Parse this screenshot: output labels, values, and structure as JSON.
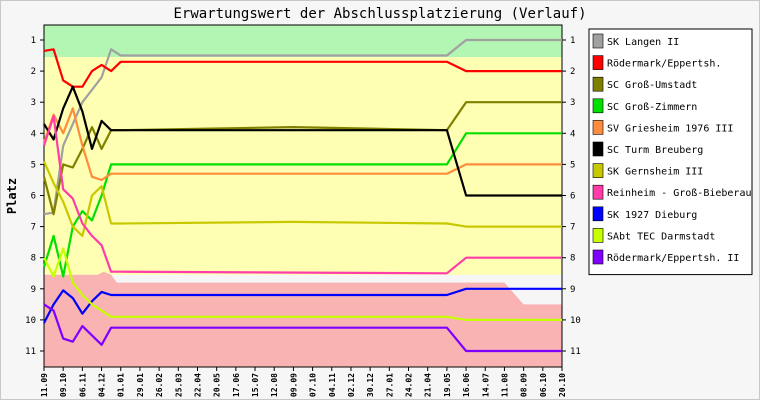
{
  "chart_data": {
    "type": "line",
    "title": "Erwartungswert der Abschlussplatzierung (Verlauf)",
    "ylabel": "Platz",
    "xlabel": "",
    "ylim": [
      1,
      11
    ],
    "y_inverted": true,
    "yticks": [
      "1",
      "2",
      "3",
      "4",
      "5",
      "6",
      "7",
      "8",
      "9",
      "10",
      "11"
    ],
    "x": [
      "11.09",
      "09.10",
      "06.11",
      "04.12",
      "01.01",
      "29.01",
      "26.02",
      "25.03",
      "22.04",
      "20.05",
      "17.06",
      "15.07",
      "12.08",
      "09.09",
      "07.10",
      "04.11",
      "02.12",
      "30.12",
      "27.01",
      "24.02",
      "21.04",
      "19.05",
      "16.06",
      "14.07",
      "11.08",
      "08.09",
      "06.10",
      "20.10"
    ],
    "zones": [
      {
        "name": "promotion",
        "color": "#b3f5b3"
      },
      {
        "name": "middle",
        "color": "#ffffb3"
      },
      {
        "name": "relegation",
        "color": "#f9b3b3"
      }
    ],
    "legend_position": "right",
    "series": [
      {
        "name": "SK Langen II",
        "color": "#a0a0a0",
        "values": [
          [
            0,
            6.6
          ],
          [
            0.5,
            6.55
          ],
          [
            1,
            4.4
          ],
          [
            1.5,
            3.7
          ],
          [
            2,
            3.0
          ],
          [
            2.5,
            2.6
          ],
          [
            3,
            2.2
          ],
          [
            3.5,
            1.3
          ],
          [
            4,
            1.5
          ],
          [
            4.5,
            1.5
          ],
          [
            21,
            1.5
          ],
          [
            22,
            1.0
          ],
          [
            27,
            1.0
          ]
        ]
      },
      {
        "name": "Rödermark/Eppertsh.",
        "color": "#ff0000",
        "values": [
          [
            0,
            1.35
          ],
          [
            0.5,
            1.3
          ],
          [
            1,
            2.3
          ],
          [
            1.5,
            2.5
          ],
          [
            2,
            2.5
          ],
          [
            2.5,
            2.0
          ],
          [
            3,
            1.8
          ],
          [
            3.5,
            2.0
          ],
          [
            4,
            1.7
          ],
          [
            21,
            1.7
          ],
          [
            22,
            2.0
          ],
          [
            27,
            2.0
          ]
        ]
      },
      {
        "name": "SC Groß-Umstadt",
        "color": "#808000",
        "values": [
          [
            0,
            5.4
          ],
          [
            0.5,
            6.6
          ],
          [
            1,
            5.0
          ],
          [
            1.5,
            5.1
          ],
          [
            2,
            4.5
          ],
          [
            2.5,
            3.8
          ],
          [
            3,
            4.5
          ],
          [
            3.5,
            3.9
          ],
          [
            4,
            3.9
          ],
          [
            13,
            3.8
          ],
          [
            21,
            3.9
          ],
          [
            22,
            3.0
          ],
          [
            27,
            3.0
          ]
        ]
      },
      {
        "name": "SC Groß-Zimmern",
        "color": "#00e000",
        "values": [
          [
            0,
            8.3
          ],
          [
            0.5,
            7.3
          ],
          [
            1,
            8.6
          ],
          [
            1.5,
            7.0
          ],
          [
            2,
            6.5
          ],
          [
            2.5,
            6.8
          ],
          [
            3,
            6.0
          ],
          [
            3.5,
            5.0
          ],
          [
            4,
            5.0
          ],
          [
            21,
            5.0
          ],
          [
            22,
            4.0
          ],
          [
            27,
            4.0
          ]
        ]
      },
      {
        "name": "SV Griesheim 1976 III",
        "color": "#ff8c3c",
        "values": [
          [
            0,
            4.3
          ],
          [
            0.5,
            3.4
          ],
          [
            1,
            4.0
          ],
          [
            1.5,
            3.2
          ],
          [
            2,
            4.4
          ],
          [
            2.5,
            5.4
          ],
          [
            3,
            5.5
          ],
          [
            3.5,
            5.3
          ],
          [
            4,
            5.3
          ],
          [
            21,
            5.3
          ],
          [
            22,
            5.0
          ],
          [
            27,
            5.0
          ]
        ]
      },
      {
        "name": "SC Turm Breuberg",
        "color": "#000000",
        "values": [
          [
            0,
            3.7
          ],
          [
            0.5,
            4.2
          ],
          [
            1,
            3.2
          ],
          [
            1.5,
            2.5
          ],
          [
            2,
            3.3
          ],
          [
            2.5,
            4.5
          ],
          [
            3,
            3.6
          ],
          [
            3.5,
            3.9
          ],
          [
            4,
            3.9
          ],
          [
            21,
            3.9
          ],
          [
            22,
            6.0
          ],
          [
            27,
            6.0
          ]
        ]
      },
      {
        "name": "SK Gernsheim III",
        "color": "#c8c800",
        "values": [
          [
            0,
            4.9
          ],
          [
            0.5,
            5.6
          ],
          [
            1,
            6.2
          ],
          [
            1.5,
            7.0
          ],
          [
            2,
            7.3
          ],
          [
            2.5,
            6.0
          ],
          [
            3,
            5.7
          ],
          [
            3.5,
            6.9
          ],
          [
            4,
            6.9
          ],
          [
            13,
            6.85
          ],
          [
            21,
            6.9
          ],
          [
            22,
            7.0
          ],
          [
            27,
            7.0
          ]
        ]
      },
      {
        "name": "Reinheim - Groß-Bieberau",
        "color": "#ff3caa",
        "values": [
          [
            0,
            4.4
          ],
          [
            0.5,
            3.45
          ],
          [
            1,
            5.8
          ],
          [
            1.5,
            6.1
          ],
          [
            2,
            6.9
          ],
          [
            2.5,
            7.3
          ],
          [
            3,
            7.6
          ],
          [
            3.5,
            8.45
          ],
          [
            4,
            8.45
          ],
          [
            21,
            8.5
          ],
          [
            22,
            8.0
          ],
          [
            27,
            8.0
          ]
        ]
      },
      {
        "name": "SK 1927 Dieburg",
        "color": "#0000ff",
        "values": [
          [
            0,
            10.1
          ],
          [
            0.5,
            9.5
          ],
          [
            1,
            9.05
          ],
          [
            1.5,
            9.3
          ],
          [
            2,
            9.8
          ],
          [
            2.5,
            9.4
          ],
          [
            3,
            9.1
          ],
          [
            3.5,
            9.2
          ],
          [
            4,
            9.2
          ],
          [
            21,
            9.2
          ],
          [
            22,
            9.0
          ],
          [
            27,
            9.0
          ]
        ]
      },
      {
        "name": "SAbt TEC Darmstadt",
        "color": "#c8ff00",
        "values": [
          [
            0,
            8.0
          ],
          [
            0.5,
            8.6
          ],
          [
            1,
            7.7
          ],
          [
            1.5,
            8.8
          ],
          [
            2,
            9.2
          ],
          [
            2.5,
            9.5
          ],
          [
            3,
            9.7
          ],
          [
            3.5,
            9.9
          ],
          [
            4,
            9.9
          ],
          [
            21,
            9.9
          ],
          [
            22,
            10.0
          ],
          [
            27,
            10.0
          ]
        ]
      },
      {
        "name": "Rödermark/Eppertsh. II",
        "color": "#8000ff",
        "values": [
          [
            0,
            9.5
          ],
          [
            0.5,
            9.7
          ],
          [
            1,
            10.6
          ],
          [
            1.5,
            10.7
          ],
          [
            2,
            10.2
          ],
          [
            2.5,
            10.5
          ],
          [
            3,
            10.8
          ],
          [
            3.5,
            10.25
          ],
          [
            4,
            10.25
          ],
          [
            21,
            10.25
          ],
          [
            22,
            11.0
          ],
          [
            27,
            11.0
          ]
        ]
      }
    ]
  }
}
